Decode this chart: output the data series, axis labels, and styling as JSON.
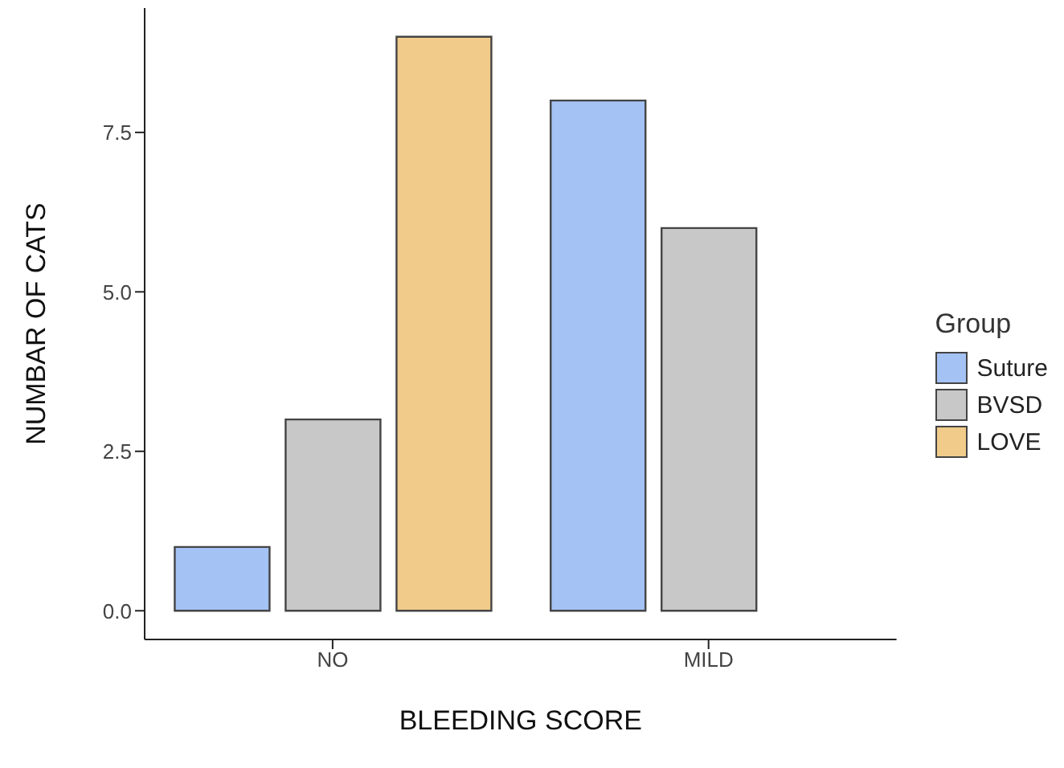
{
  "chart_data": {
    "type": "bar",
    "xlabel": "BLEEDING SCORE",
    "ylabel": "NUMBAR OF CATS",
    "legend_title": "Group",
    "categories": [
      "NO",
      "MILD"
    ],
    "series": [
      {
        "name": "Suture",
        "color": "#a4c2f4",
        "values": [
          1,
          8
        ]
      },
      {
        "name": "BVSD",
        "color": "#c8c8c8",
        "values": [
          3,
          6
        ]
      },
      {
        "name": "LOVE",
        "color": "#f0cb8a",
        "values": [
          9,
          0
        ]
      }
    ],
    "ylim": [
      -0.45,
      9.45
    ],
    "yticks": [
      {
        "value": 0,
        "label": "0.0"
      },
      {
        "value": 2.5,
        "label": "2.5"
      },
      {
        "value": 5,
        "label": "5.0"
      },
      {
        "value": 7.5,
        "label": "7.5"
      }
    ],
    "grid": false,
    "legend": "right"
  }
}
